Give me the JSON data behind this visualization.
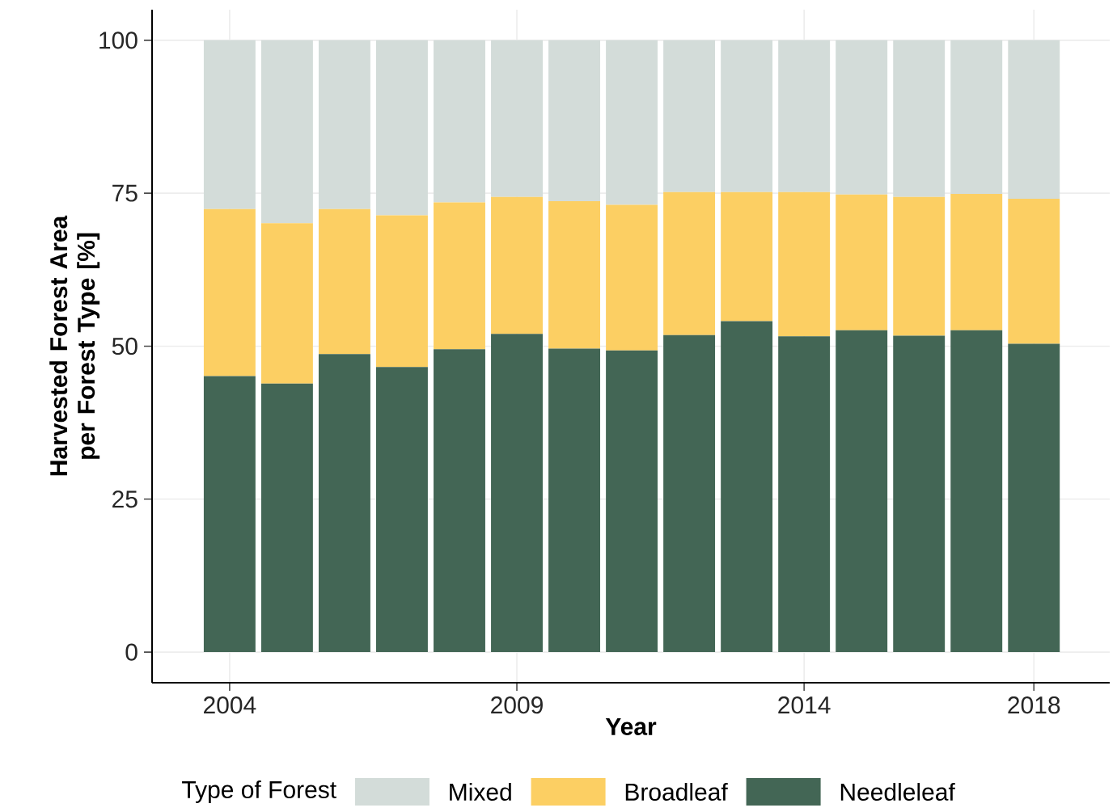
{
  "chart_data": {
    "type": "bar",
    "stacked": true,
    "xlabel": "Year",
    "ylabel": "Harvested Forest Area per Forest Type [%]",
    "legend_title": "Type of Forest",
    "legend": "bottom",
    "grid": true,
    "x": [
      2004,
      2005,
      2006,
      2007,
      2008,
      2009,
      2010,
      2011,
      2012,
      2013,
      2014,
      2015,
      2016,
      2017,
      2018
    ],
    "xlim": [
      2002.65,
      2019.32
    ],
    "xticks": [
      2004,
      2009,
      2014,
      2018
    ],
    "ylim": [
      -5,
      105
    ],
    "yticks": [
      0,
      25,
      50,
      75,
      100
    ],
    "series": [
      {
        "name": "Needleleaf",
        "color": "#436655",
        "values": [
          45.1,
          43.9,
          48.7,
          46.6,
          49.5,
          52.0,
          49.6,
          49.3,
          51.8,
          54.1,
          51.6,
          52.6,
          51.7,
          52.6,
          50.4
        ]
      },
      {
        "name": "Broadleaf",
        "color": "#fccf63",
        "values": [
          27.3,
          26.2,
          23.7,
          24.8,
          24.0,
          22.4,
          24.1,
          23.8,
          23.4,
          21.1,
          23.6,
          22.2,
          22.7,
          22.3,
          23.7
        ]
      },
      {
        "name": "Mixed",
        "color": "#d3dcd9",
        "values": [
          27.6,
          29.9,
          27.6,
          28.6,
          26.5,
          25.6,
          26.3,
          26.9,
          24.8,
          24.8,
          24.8,
          25.2,
          25.6,
          25.1,
          25.9
        ]
      }
    ]
  }
}
